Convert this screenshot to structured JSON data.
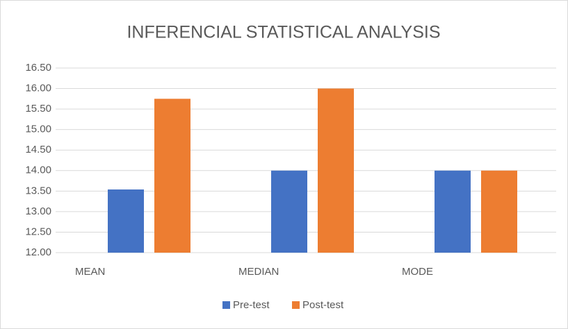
{
  "chart_data": {
    "type": "bar",
    "title": "INFERENCIAL STATISTICAL ANALYSIS",
    "categories": [
      "MEAN",
      "MEDIAN",
      "MODE"
    ],
    "series": [
      {
        "name": "Pre-test",
        "color": "#4472c4",
        "values": [
          13.54,
          14,
          14
        ]
      },
      {
        "name": "Post-test",
        "color": "#ed7d31",
        "values": [
          15.75,
          16,
          14
        ]
      }
    ],
    "ylim": [
      12,
      16.5
    ],
    "yticks": [
      {
        "value": 12,
        "label": "12.00"
      },
      {
        "value": 12.5,
        "label": "12.50"
      },
      {
        "value": 13,
        "label": "13.00"
      },
      {
        "value": 13.5,
        "label": "13.50"
      },
      {
        "value": 14,
        "label": "14.00"
      },
      {
        "value": 14.5,
        "label": "14.50"
      },
      {
        "value": 15,
        "label": "15.00"
      },
      {
        "value": 15.5,
        "label": "15.50"
      },
      {
        "value": 16,
        "label": "16.00"
      },
      {
        "value": 16.5,
        "label": "16.50"
      }
    ],
    "grid": true,
    "legend": "bottom"
  }
}
